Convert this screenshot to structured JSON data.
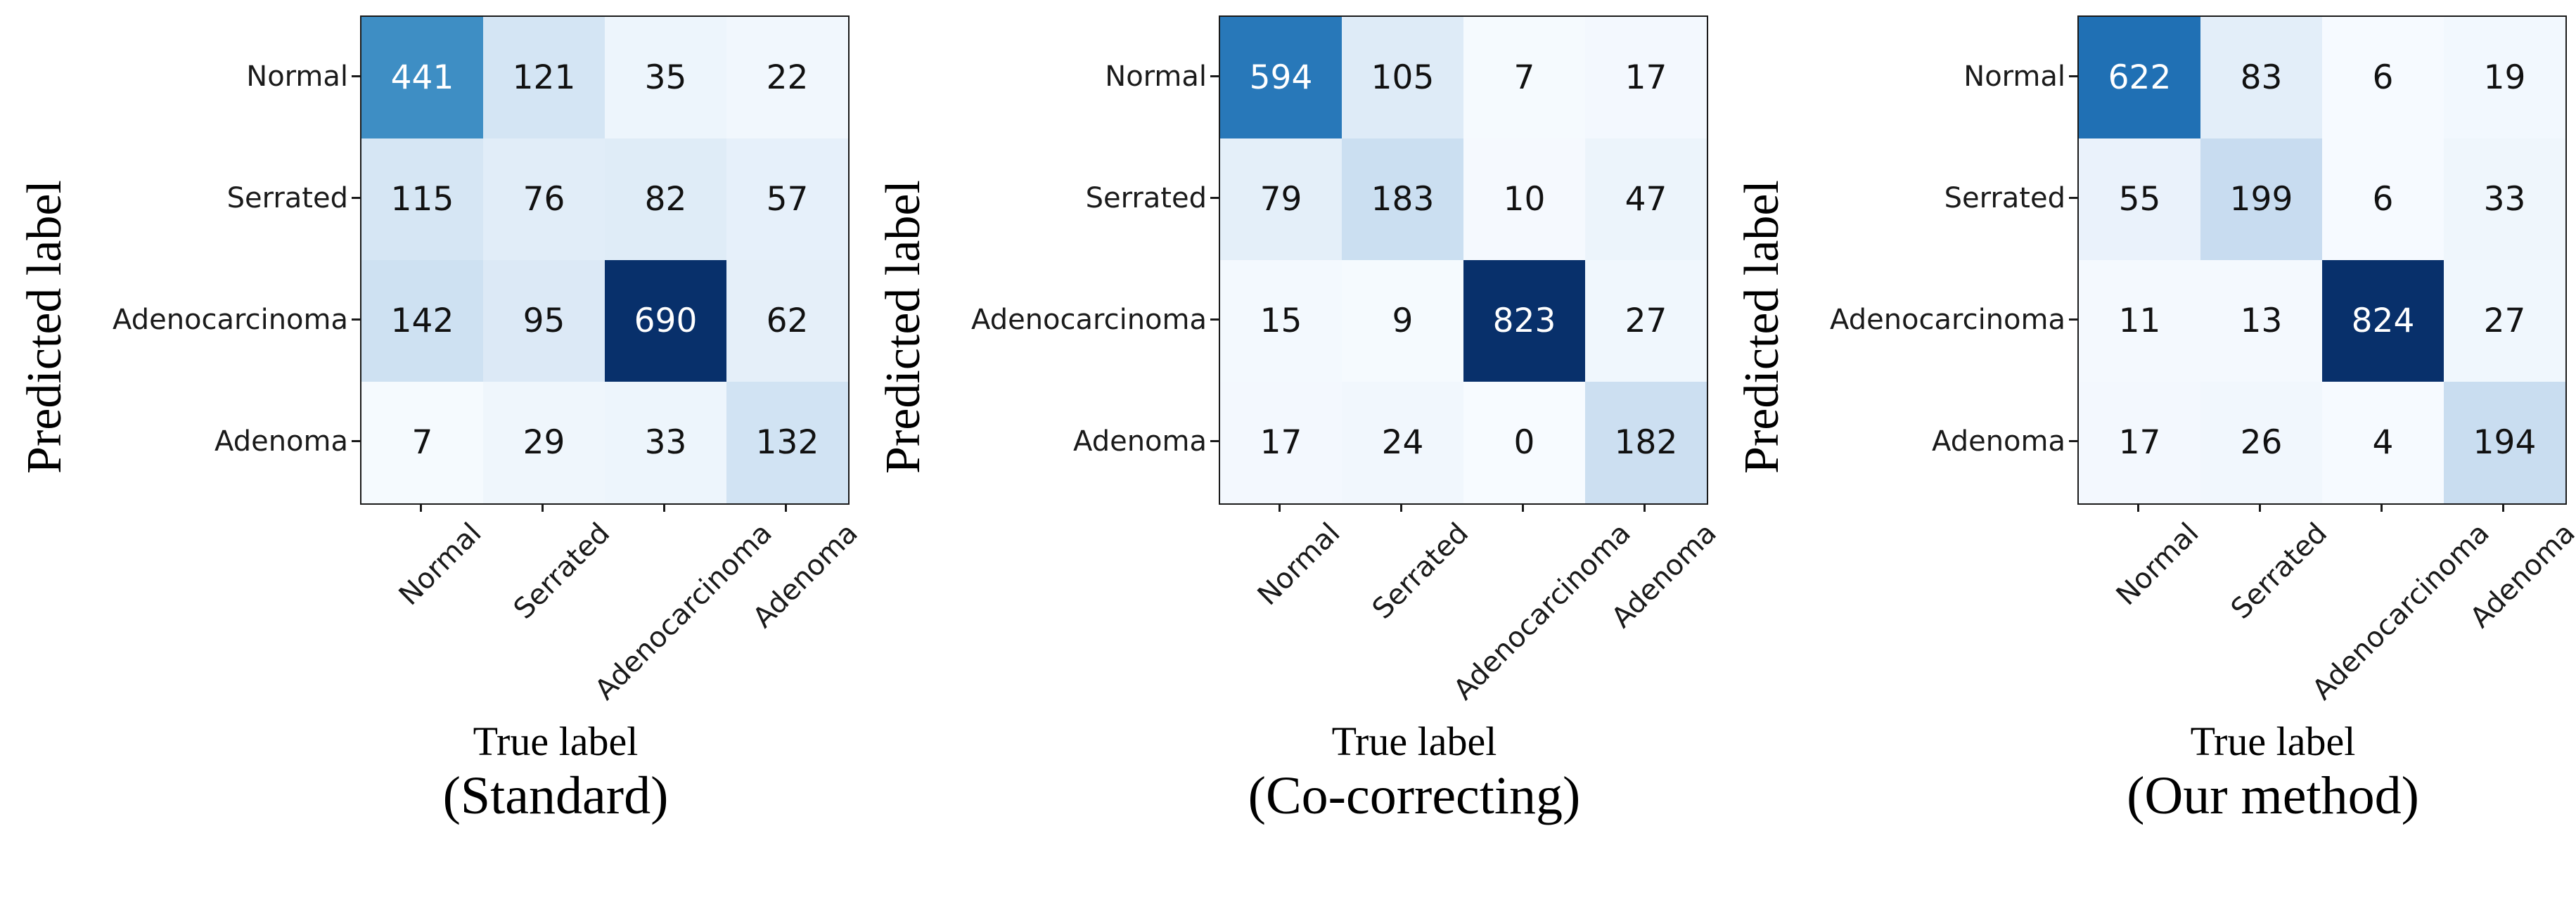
{
  "figure": {
    "ylabel": "Predicted label",
    "xlabel": "True label",
    "classes": [
      "Normal",
      "Serrated",
      "Adenocarcinoma",
      "Adenoma"
    ],
    "colors": {
      "colormap_name": "Blues",
      "colormap_stops": [
        "#f7fbff",
        "#deebf7",
        "#c6dbef",
        "#9ecae1",
        "#6baed6",
        "#4292c6",
        "#2171b5",
        "#08519c",
        "#08306b"
      ],
      "spine": "#1a1a1a",
      "cell_text_dark": "#111111",
      "cell_text_light": "#ffffff",
      "background": "#ffffff"
    }
  },
  "chart_data": [
    {
      "type": "heatmap",
      "title": "(Standard)",
      "xlabel": "True label",
      "ylabel": "Predicted label",
      "x_categories": [
        "Normal",
        "Serrated",
        "Adenocarcinoma",
        "Adenoma"
      ],
      "y_categories": [
        "Normal",
        "Serrated",
        "Adenocarcinoma",
        "Adenoma"
      ],
      "matrix": [
        [
          441,
          121,
          35,
          22
        ],
        [
          115,
          76,
          82,
          57
        ],
        [
          142,
          95,
          690,
          62
        ],
        [
          7,
          29,
          33,
          132
        ]
      ],
      "colormap": "Blues",
      "vmin": 0,
      "vmax": 690,
      "grid": false,
      "legend": "none"
    },
    {
      "type": "heatmap",
      "title": "(Co-correcting)",
      "xlabel": "True label",
      "ylabel": "Predicted label",
      "x_categories": [
        "Normal",
        "Serrated",
        "Adenocarcinoma",
        "Adenoma"
      ],
      "y_categories": [
        "Normal",
        "Serrated",
        "Adenocarcinoma",
        "Adenoma"
      ],
      "matrix": [
        [
          594,
          105,
          7,
          17
        ],
        [
          79,
          183,
          10,
          47
        ],
        [
          15,
          9,
          823,
          27
        ],
        [
          17,
          24,
          0,
          182
        ]
      ],
      "colormap": "Blues",
      "vmin": 0,
      "vmax": 823,
      "grid": false,
      "legend": "none"
    },
    {
      "type": "heatmap",
      "title": "(Our method)",
      "xlabel": "True label",
      "ylabel": "Predicted label",
      "x_categories": [
        "Normal",
        "Serrated",
        "Adenocarcinoma",
        "Adenoma"
      ],
      "y_categories": [
        "Normal",
        "Serrated",
        "Adenocarcinoma",
        "Adenoma"
      ],
      "matrix": [
        [
          622,
          83,
          6,
          19
        ],
        [
          55,
          199,
          6,
          33
        ],
        [
          11,
          13,
          824,
          27
        ],
        [
          17,
          26,
          4,
          194
        ]
      ],
      "colormap": "Blues",
      "vmin": 0,
      "vmax": 824,
      "grid": false,
      "legend": "none"
    }
  ]
}
